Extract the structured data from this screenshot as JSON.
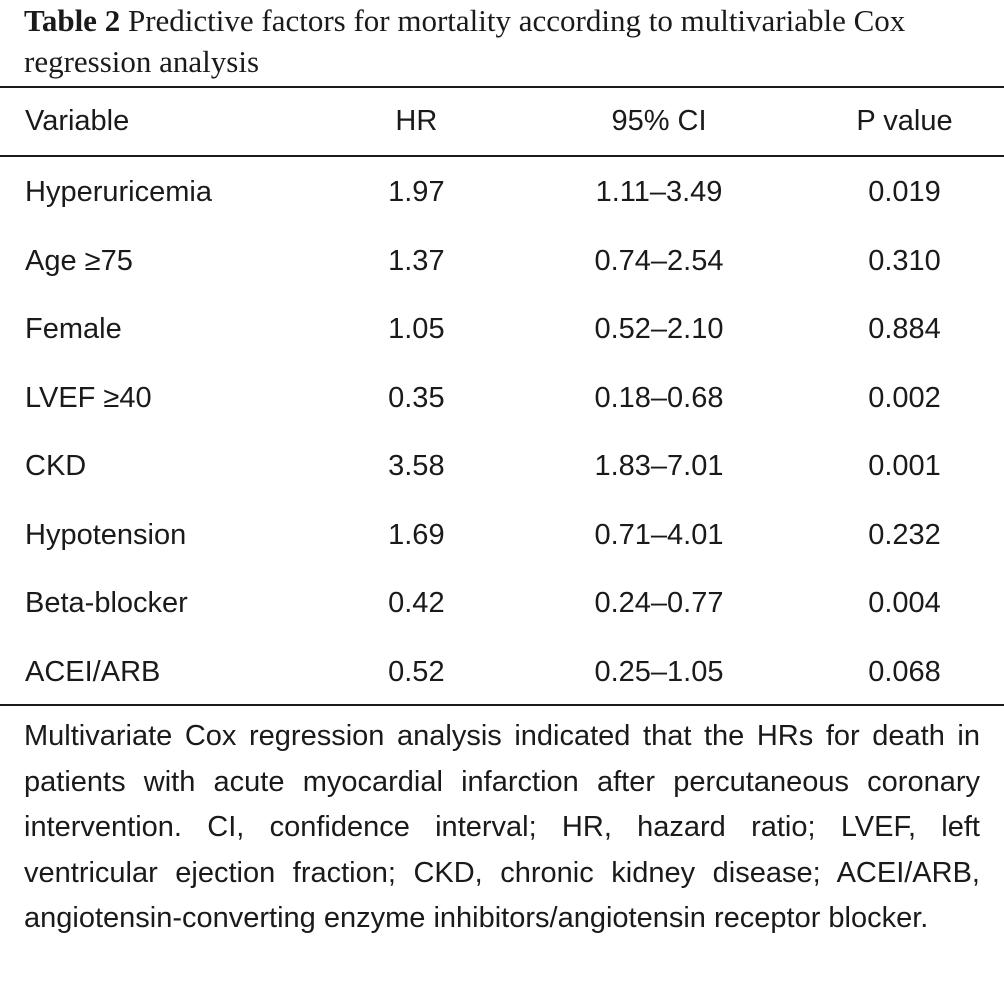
{
  "caption": {
    "label": "Table 2",
    "text": "Predictive factors for mortality according to multivariable Cox regression analysis"
  },
  "table": {
    "headers": [
      "Variable",
      "HR",
      "95% CI",
      "P value"
    ],
    "rows": [
      {
        "variable": "Hyperuricemia",
        "hr": "1.97",
        "ci": "1.11–3.49",
        "p": "0.019"
      },
      {
        "variable": "Age ≥75",
        "hr": "1.37",
        "ci": "0.74–2.54",
        "p": "0.310"
      },
      {
        "variable": "Female",
        "hr": "1.05",
        "ci": "0.52–2.10",
        "p": "0.884"
      },
      {
        "variable": "LVEF ≥40",
        "hr": "0.35",
        "ci": "0.18–0.68",
        "p": "0.002"
      },
      {
        "variable": "CKD",
        "hr": "3.58",
        "ci": "1.83–7.01",
        "p": "0.001"
      },
      {
        "variable": "Hypotension",
        "hr": "1.69",
        "ci": "0.71–4.01",
        "p": "0.232"
      },
      {
        "variable": "Beta-blocker",
        "hr": "0.42",
        "ci": "0.24–0.77",
        "p": "0.004"
      },
      {
        "variable": "ACEI/ARB",
        "hr": "0.52",
        "ci": "0.25–1.05",
        "p": "0.068"
      }
    ]
  },
  "footnote": "Multivariate Cox regression analysis indicated that the HRs for death in patients with acute myocardial infarction after percutaneous coronary intervention. CI, confidence interval; HR, hazard ratio; LVEF, left ventricular ejection fraction; CKD, chronic kidney disease; ACEI/ARB, angiotensin-converting enzyme inhibitors/angiotensin receptor blocker."
}
